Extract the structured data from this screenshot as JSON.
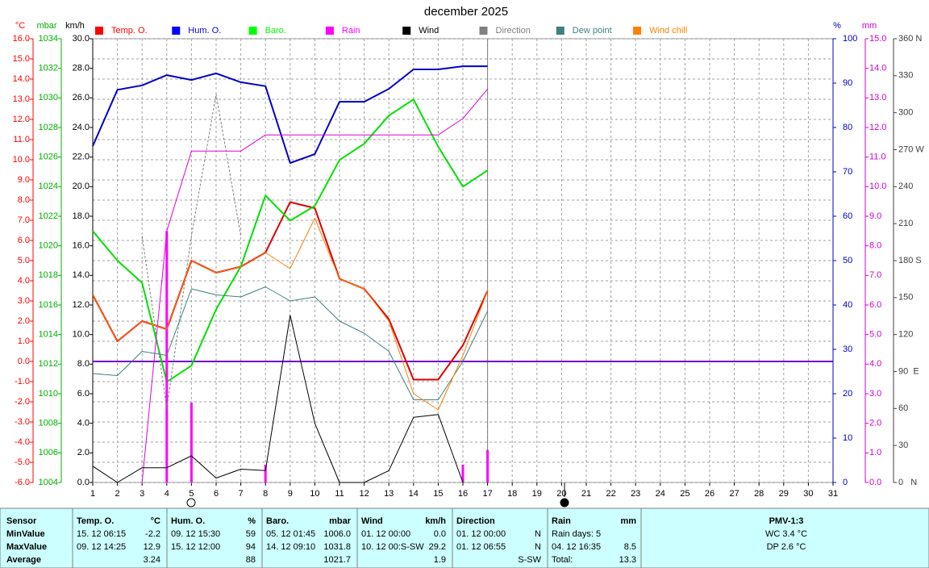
{
  "chart_data": {
    "type": "line",
    "title": "december 2025",
    "x": [
      1,
      2,
      3,
      4,
      5,
      6,
      7,
      8,
      9,
      10,
      11,
      12,
      13,
      14,
      15,
      16,
      17
    ],
    "xlim": [
      1,
      31
    ],
    "xticks": [
      1,
      2,
      3,
      4,
      5,
      6,
      7,
      8,
      9,
      10,
      11,
      12,
      13,
      14,
      15,
      16,
      17,
      18,
      19,
      20,
      21,
      22,
      23,
      24,
      25,
      26,
      27,
      28,
      29,
      30,
      31
    ],
    "grid": true,
    "axes": {
      "temp": {
        "label": "°C",
        "color": "#ff0000",
        "side": "left",
        "lim": [
          -6,
          16
        ],
        "ticks": [
          {
            "value": -6,
            "label": "-6.0"
          },
          {
            "value": -5,
            "label": "-5.0"
          },
          {
            "value": -4,
            "label": "-4.0"
          },
          {
            "value": -3,
            "label": "-3.0"
          },
          {
            "value": -2,
            "label": "-2.0"
          },
          {
            "value": -1,
            "label": "-1.0"
          },
          {
            "value": 0,
            "label": "0.0"
          },
          {
            "value": 1,
            "label": "1.0"
          },
          {
            "value": 2,
            "label": "2.0"
          },
          {
            "value": 3,
            "label": "3.0"
          },
          {
            "value": 4,
            "label": "4.0"
          },
          {
            "value": 5,
            "label": "5.0"
          },
          {
            "value": 6,
            "label": "6.0"
          },
          {
            "value": 7,
            "label": "7.0"
          },
          {
            "value": 8,
            "label": "8.0"
          },
          {
            "value": 9,
            "label": "9.0"
          },
          {
            "value": 10,
            "label": "10.0"
          },
          {
            "value": 11,
            "label": "11.0"
          },
          {
            "value": 12,
            "label": "12.0"
          },
          {
            "value": 13,
            "label": "13.0"
          },
          {
            "value": 14,
            "label": "14.0"
          },
          {
            "value": 15,
            "label": "15.0"
          },
          {
            "value": 16,
            "label": "16.0"
          }
        ]
      },
      "baro": {
        "label": "mbar",
        "color": "#00b000",
        "side": "left",
        "lim": [
          1004,
          1034
        ],
        "ticks": [
          1004,
          1006,
          1008,
          1010,
          1012,
          1014,
          1016,
          1018,
          1020,
          1022,
          1024,
          1026,
          1028,
          1030,
          1032,
          1034
        ]
      },
      "wind": {
        "label": "km/h",
        "color": "#000000",
        "side": "left",
        "lim": [
          0,
          30
        ],
        "ticks": [
          {
            "value": 0,
            "label": "0.0"
          },
          {
            "value": 2,
            "label": "2.0"
          },
          {
            "value": 4,
            "label": "4.0"
          },
          {
            "value": 6,
            "label": "6.0"
          },
          {
            "value": 8,
            "label": "8.0"
          },
          {
            "value": 10,
            "label": "10.0"
          },
          {
            "value": 12,
            "label": "12.0"
          },
          {
            "value": 14,
            "label": "14.0"
          },
          {
            "value": 16,
            "label": "16.0"
          },
          {
            "value": 18,
            "label": "18.0"
          },
          {
            "value": 20,
            "label": "20.0"
          },
          {
            "value": 22,
            "label": "22.0"
          },
          {
            "value": 24,
            "label": "24.0"
          },
          {
            "value": 26,
            "label": "26.0"
          },
          {
            "value": 28,
            "label": "28.0"
          },
          {
            "value": 30,
            "label": "30.0"
          }
        ]
      },
      "hum": {
        "label": "%",
        "color": "#0000c0",
        "side": "right",
        "lim": [
          0,
          100
        ],
        "ticks": [
          0,
          10,
          20,
          30,
          40,
          50,
          60,
          70,
          80,
          90,
          100
        ]
      },
      "rain": {
        "label": "mm",
        "color": "#d000d0",
        "side": "right",
        "lim": [
          0,
          15
        ],
        "ticks": [
          {
            "value": 0,
            "label": "0.0"
          },
          {
            "value": 1,
            "label": "1.0"
          },
          {
            "value": 2,
            "label": "2.0"
          },
          {
            "value": 3,
            "label": "3.0"
          },
          {
            "value": 4,
            "label": "4.0"
          },
          {
            "value": 5,
            "label": "5.0"
          },
          {
            "value": 6,
            "label": "6.0"
          },
          {
            "value": 7,
            "label": "7.0"
          },
          {
            "value": 8,
            "label": "8.0"
          },
          {
            "value": 9,
            "label": "9.0"
          },
          {
            "value": 10,
            "label": "10.0"
          },
          {
            "value": 11,
            "label": "11.0"
          },
          {
            "value": 12,
            "label": "12.0"
          },
          {
            "value": 13,
            "label": "13.0"
          },
          {
            "value": 14,
            "label": "14.0"
          },
          {
            "value": 15,
            "label": "15.0"
          }
        ]
      },
      "dir": {
        "color": "#404040",
        "side": "right",
        "lim": [
          0,
          360
        ],
        "ticks": [
          {
            "value": 0,
            "label": "0   N"
          },
          30,
          60,
          {
            "value": 90,
            "label": "90  E"
          },
          120,
          150,
          {
            "value": 180,
            "label": "180 S"
          },
          210,
          240,
          {
            "value": 270,
            "label": "270 W"
          },
          300,
          330,
          {
            "value": 360,
            "label": "360 N"
          }
        ]
      }
    },
    "reference_line": {
      "axis": "temp",
      "value": 0,
      "color": "#7000d0"
    },
    "series": [
      {
        "name": "Temp. O.",
        "color": "#ff0000",
        "line_color": "#e00000",
        "width": 2,
        "axis": "temp",
        "values": [
          3.3,
          1.0,
          2.0,
          1.6,
          5.0,
          4.4,
          4.7,
          5.4,
          7.9,
          7.6,
          4.1,
          3.6,
          2.1,
          -0.9,
          -0.9,
          0.8,
          3.5
        ]
      },
      {
        "name": "Hum. O.",
        "color": "#0000ff",
        "line_color": "#0000c8",
        "width": 2,
        "axis": "hum",
        "values": [
          75.8,
          88.5,
          89.5,
          91.8,
          90.7,
          92.2,
          90.2,
          89.3,
          72,
          74,
          85.8,
          85.8,
          88.7,
          93.1,
          93.1,
          93.8,
          93.8
        ]
      },
      {
        "name": "Baro.",
        "color": "#00ff00",
        "line_color": "#00e000",
        "width": 2,
        "axis": "baro",
        "values": [
          1021.0,
          1019.0,
          1017.5,
          1010.8,
          1011.9,
          1015.7,
          1018.6,
          1023.4,
          1021.7,
          1022.7,
          1025.8,
          1026.9,
          1028.8,
          1029.9,
          1026.7,
          1024.0,
          1025.1
        ]
      },
      {
        "name": "Rain",
        "color": "#ff00ff",
        "line_color": "#e000e0",
        "width": 1,
        "axis": "rain",
        "values": [
          null,
          null,
          0,
          8.5,
          11.2,
          11.2,
          11.2,
          11.75,
          11.75,
          11.75,
          11.75,
          11.75,
          11.75,
          11.75,
          11.75,
          12.3,
          13.3
        ],
        "bars": [
          null,
          null,
          null,
          8.5,
          2.7,
          null,
          null,
          0.6,
          null,
          null,
          null,
          null,
          null,
          null,
          null,
          0.6,
          1.1
        ]
      },
      {
        "name": "Wind",
        "color": "#000000",
        "line_color": "#000000",
        "width": 1,
        "axis": "wind",
        "values": [
          1.1,
          0,
          1.0,
          1.0,
          1.8,
          0.3,
          0.9,
          0.8,
          11.3,
          4.0,
          0,
          0,
          0.8,
          4.4,
          4.6,
          0,
          null
        ]
      },
      {
        "name": "Direction",
        "color": "#808080",
        "line_color": "#808080",
        "width": 1,
        "dash": true,
        "axis": "dir",
        "values": [
          null,
          null,
          200,
          60,
          200,
          315,
          200,
          null,
          null,
          null,
          null,
          null,
          null,
          null,
          null,
          null,
          null
        ]
      },
      {
        "name": "Dew point",
        "color": "#408080",
        "line_color": "#408080",
        "width": 1,
        "axis": "temp",
        "values": [
          -0.6,
          -0.7,
          0.5,
          0.3,
          3.6,
          3.3,
          3.2,
          3.7,
          3.0,
          3.2,
          2.0,
          1.4,
          0.5,
          -1.9,
          -1.9,
          0.0,
          2.5
        ]
      },
      {
        "name": "Wind chill",
        "color": "#ff8000",
        "line_color": "#ff8000",
        "width": 1,
        "axis": "temp",
        "values": [
          3.3,
          1.0,
          2.0,
          1.6,
          5.0,
          4.4,
          4.7,
          5.4,
          4.6,
          7.1,
          4.1,
          3.6,
          2.0,
          -1.6,
          -2.4,
          0.3,
          3.5
        ]
      }
    ]
  },
  "table": {
    "columns": [
      {
        "title": "Sensor",
        "rows": [
          "MinValue",
          "MaxValue",
          "Average"
        ]
      },
      {
        "title": "Temp. O.",
        "unit": "°C",
        "rows": [
          [
            "15. 12 06:15",
            "-2.2"
          ],
          [
            "09. 12 14:25",
            "12.9"
          ],
          [
            null,
            "3.24"
          ]
        ]
      },
      {
        "title": "Hum. O.",
        "unit": "%",
        "rows": [
          [
            "09. 12 15:30",
            "59"
          ],
          [
            "15. 12 12:00",
            "94"
          ],
          [
            null,
            "88"
          ]
        ]
      },
      {
        "title": "Baro.",
        "unit": "mbar",
        "rows": [
          [
            "05. 12 01:45",
            "1006.0"
          ],
          [
            "14. 12 09:10",
            "1031.8"
          ],
          [
            null,
            "1021.7"
          ]
        ]
      },
      {
        "title": "Wind",
        "unit": "km/h",
        "rows": [
          [
            "01. 12 00:00",
            "0.0"
          ],
          [
            "10. 12 00:S-SW",
            "29.2"
          ],
          [
            null,
            "1.9"
          ]
        ]
      },
      {
        "title": "Direction",
        "rows": [
          [
            "01. 12 00:00",
            "N"
          ],
          [
            "01. 12 06:55",
            "N"
          ],
          [
            null,
            "S-SW"
          ]
        ]
      },
      {
        "title": "Rain",
        "unit": "mm",
        "rows": [
          [
            "Rain days: 5",
            null
          ],
          [
            "04. 12 16:35",
            "8.5"
          ],
          [
            "Total:",
            "13.3"
          ]
        ]
      },
      {
        "title": "PMV-1:3",
        "rows": [
          "WC 3.4 °C",
          "DP 2.6 °C"
        ]
      }
    ]
  }
}
